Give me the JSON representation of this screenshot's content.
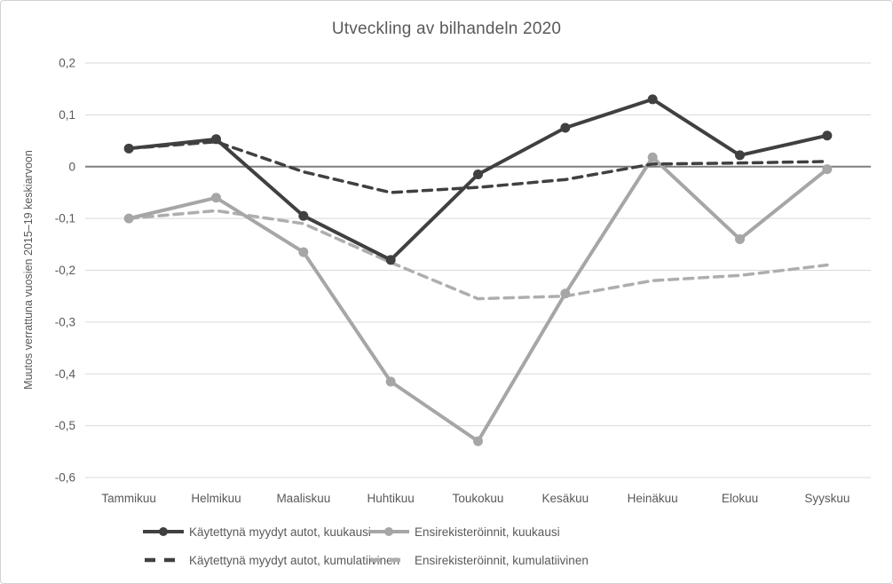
{
  "title": "Utveckling av bilhandeln 2020",
  "y_axis": {
    "label": "Muutos verrattuna vuosien 2015–19 keskiarvoon",
    "ticks": [
      {
        "value": 0.2,
        "label": "0,2"
      },
      {
        "value": 0.1,
        "label": "0,1"
      },
      {
        "value": 0,
        "label": "0"
      },
      {
        "value": -0.1,
        "label": "-0,1"
      },
      {
        "value": -0.2,
        "label": "-0,2"
      },
      {
        "value": -0.3,
        "label": "-0,3"
      },
      {
        "value": -0.4,
        "label": "-0,4"
      },
      {
        "value": -0.5,
        "label": "-0,5"
      },
      {
        "value": -0.6,
        "label": "-0,6"
      }
    ]
  },
  "colors": {
    "dark_series": "#404040",
    "gray_series": "#a6a6a6",
    "gray_dashed_series": "#aeaeae",
    "gridline": "#d9d9d9",
    "zero_axis": "#7f7f7f",
    "text": "#595959",
    "frame_border": "#d2d2d2"
  },
  "chart_data": {
    "type": "line",
    "title": "Utveckling av bilhandeln 2020",
    "xlabel": "",
    "ylabel": "Muutos verrattuna vuosien 2015–19 keskiarvoon",
    "ylim": [
      -0.6,
      0.2
    ],
    "ytick_step": 0.1,
    "grid": true,
    "legend_position": "bottom",
    "categories": [
      "Tammikuu",
      "Helmikuu",
      "Maaliskuu",
      "Huhtikuu",
      "Toukokuu",
      "Kesäkuu",
      "Heinäkuu",
      "Elokuu",
      "Syyskuu"
    ],
    "series": [
      {
        "name": "Käytettynä myydyt autot, kuukausi",
        "color": "#404040",
        "style": "solid",
        "marker": "circle",
        "values": [
          0.035,
          0.053,
          -0.095,
          -0.18,
          -0.015,
          0.075,
          0.13,
          0.022,
          0.06
        ]
      },
      {
        "name": "Ensirekisteröinnit, kuukausi",
        "color": "#a6a6a6",
        "style": "solid",
        "marker": "circle",
        "values": [
          -0.1,
          -0.06,
          -0.165,
          -0.415,
          -0.53,
          -0.245,
          0.018,
          -0.14,
          -0.005
        ]
      },
      {
        "name": "Käytettynä myydyt autot, kumulatiivinen",
        "color": "#404040",
        "style": "dashed",
        "marker": "none",
        "values": [
          0.035,
          0.048,
          -0.01,
          -0.05,
          -0.04,
          -0.025,
          0.005,
          0.007,
          0.01
        ]
      },
      {
        "name": "Ensirekisteröinnit, kumulatiivinen",
        "color": "#aeaeae",
        "style": "dashed",
        "marker": "none",
        "values": [
          -0.1,
          -0.085,
          -0.11,
          -0.185,
          -0.255,
          -0.25,
          -0.22,
          -0.21,
          -0.19
        ]
      }
    ]
  }
}
